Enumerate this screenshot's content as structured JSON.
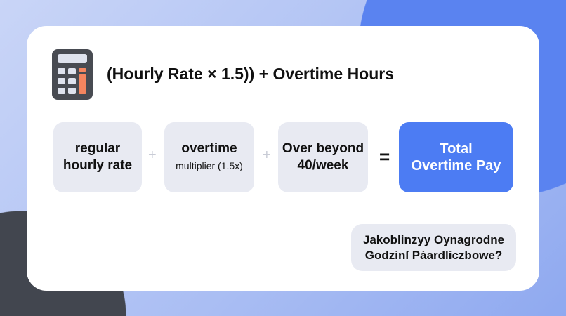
{
  "title": "(Hourly Rate × 1.5)) + Overtime Hours",
  "icon": "calculator-icon",
  "terms": [
    {
      "line1": "regular",
      "line2": "hourly rate"
    },
    {
      "line1": "overtime",
      "line2": "multiplier (1.5x)"
    },
    {
      "line1": "Over beyond",
      "line2": "40/week"
    }
  ],
  "operators": {
    "plus": "+",
    "equals": "="
  },
  "result": {
    "line1": "Total",
    "line2": "Overtime Pay"
  },
  "question": {
    "line1": "Jakoblinzyy Oynagrodne",
    "line2": "Godzinſ Pȧardliczbowe?"
  },
  "colors": {
    "accent": "#4c7cf3",
    "calc_key": "#f4855f",
    "calc_body": "#484b52"
  }
}
